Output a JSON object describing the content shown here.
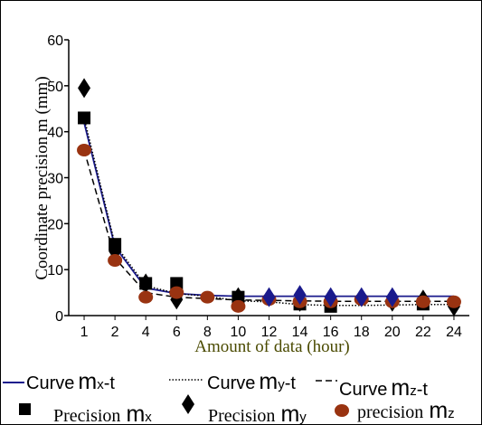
{
  "chart_data": {
    "type": "scatter",
    "xlabel": "Amount of data (hour)",
    "ylabel": "Coordinate precision m (mm)",
    "ylim": [
      0,
      60
    ],
    "yticks": [
      "0",
      "10",
      "20",
      "30",
      "40",
      "50",
      "60"
    ],
    "categories": [
      "1",
      "2",
      "4",
      "6",
      "8",
      "10",
      "12",
      "14",
      "16",
      "18",
      "20",
      "22",
      "24"
    ],
    "grid": false,
    "legend_position": "bottom",
    "series": [
      {
        "name": "Precision",
        "sub": "x",
        "kind": "points",
        "marker": "square",
        "color": "#000000",
        "values": [
          43,
          15.5,
          7,
          7,
          null,
          4,
          null,
          2.5,
          2,
          null,
          null,
          2.5,
          null
        ]
      },
      {
        "name": "Precision",
        "sub": "y",
        "kind": "points",
        "marker": "diamond",
        "color": "#000000",
        "values": [
          49.5,
          14,
          7,
          3.5,
          null,
          4,
          null,
          3,
          null,
          null,
          3,
          3.5,
          2
        ]
      },
      {
        "name": "precision",
        "sub": "z",
        "kind": "points",
        "marker": "circle",
        "color": "#993311",
        "values": [
          36,
          12,
          4,
          5,
          4,
          2,
          3.5,
          3,
          3,
          3.5,
          3,
          3,
          3
        ]
      },
      {
        "name": "Curve",
        "sub": "x",
        "suffix": "-t",
        "kind": "line",
        "dash": "solid",
        "color": "#1a1a8c",
        "values": [
          42,
          15,
          6,
          4.8,
          4.4,
          4.2,
          4.2,
          4.2,
          4.2,
          4.2,
          4.2,
          4.2,
          4.2
        ]
      },
      {
        "name": "Curve",
        "sub": "y",
        "suffix": "-t",
        "kind": "line",
        "dash": "dotted",
        "color": "#000000",
        "values": [
          43,
          15.5,
          6.5,
          4.8,
          4.2,
          3.2,
          3,
          2.4,
          2.2,
          2.2,
          2.3,
          2.4,
          2.4
        ]
      },
      {
        "name": "Curve",
        "sub": "z",
        "suffix": "-t",
        "kind": "line",
        "dash": "dashed",
        "color": "#000000",
        "values": [
          36,
          12.5,
          5,
          4,
          3.7,
          3.4,
          3.3,
          3.2,
          3.1,
          3.1,
          3.1,
          3.1,
          3.1
        ]
      }
    ],
    "extra_points": [
      {
        "marker": "diamond",
        "color": "#1a1a8c",
        "x": "12",
        "y": 4
      },
      {
        "marker": "diamond",
        "color": "#1a1a8c",
        "x": "14",
        "y": 4.5
      },
      {
        "marker": "diamond",
        "color": "#1a1a8c",
        "x": "16",
        "y": 4
      },
      {
        "marker": "diamond",
        "color": "#1a1a8c",
        "x": "18",
        "y": 4
      },
      {
        "marker": "diamond",
        "color": "#1a1a8c",
        "x": "20",
        "y": 4
      }
    ],
    "legend": {
      "curve_word": "Curve",
      "curve_x_main": "m",
      "curve_x_sub": "x",
      "curve_y_main": "m",
      "curve_y_sub": "y",
      "curve_z_main": "m",
      "curve_z_sub": "z",
      "suffix": "-t",
      "prec_x_word": "Precision",
      "prec_y_word": "Precision",
      "prec_z_word": "precision",
      "prec_main": "m"
    }
  }
}
